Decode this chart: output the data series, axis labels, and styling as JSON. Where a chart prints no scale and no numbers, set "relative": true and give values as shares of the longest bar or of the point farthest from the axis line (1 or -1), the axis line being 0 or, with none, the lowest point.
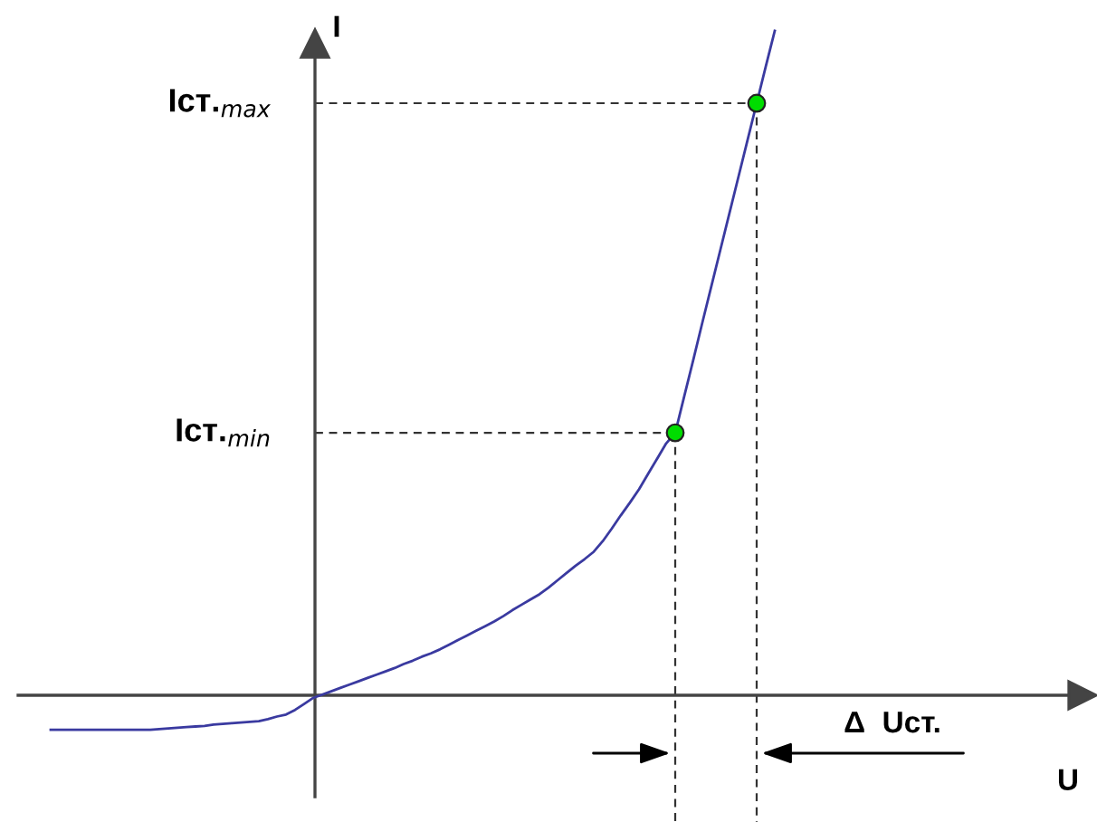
{
  "chart_data": {
    "type": "line",
    "relative": true,
    "ylabel": "I",
    "legend": false,
    "grid": false,
    "categories": [
      null,
      null,
      null,
      null,
      null,
      null,
      null,
      null,
      null,
      null,
      null,
      null,
      null,
      null,
      null,
      null,
      null,
      null,
      null,
      null,
      null,
      null,
      null,
      null,
      null,
      null,
      null,
      null,
      null,
      null,
      null,
      null,
      null,
      null,
      null,
      null,
      null,
      null,
      null,
      null,
      null,
      null,
      null,
      null,
      null,
      null,
      null,
      null,
      null,
      null,
      null,
      null,
      null,
      null,
      null,
      null,
      null,
      null,
      null,
      null,
      null,
      null,
      null,
      null,
      null,
      null,
      null,
      null,
      null,
      null,
      null,
      null,
      null,
      null,
      null,
      null,
      null,
      null,
      null,
      null,
      null
    ],
    "series": [
      {
        "color": "#3a3aa0",
        "values": [
          -0.052,
          -0.052,
          -0.052,
          -0.052,
          -0.052,
          -0.052,
          -0.052,
          -0.052,
          -0.052,
          -0.052,
          -0.052,
          -0.052,
          -0.051,
          -0.05,
          -0.049,
          -0.048,
          -0.047,
          -0.046,
          -0.044,
          -0.043,
          -0.042,
          -0.041,
          -0.04,
          -0.039,
          -0.036,
          -0.032,
          -0.029,
          -0.022,
          -0.013,
          -0.004,
          0.001,
          0.006,
          0.011,
          0.016,
          0.021,
          0.026,
          0.031,
          0.036,
          0.041,
          0.047,
          0.052,
          0.058,
          0.063,
          0.069,
          0.076,
          0.083,
          0.09,
          0.097,
          0.104,
          0.111,
          0.119,
          0.128,
          0.136,
          0.144,
          0.152,
          0.162,
          0.173,
          0.184,
          0.195,
          0.205,
          0.216,
          0.232,
          0.251,
          0.271,
          0.29,
          0.31,
          0.333,
          0.356,
          0.379,
          0.395,
          0.45,
          0.505,
          0.561,
          0.616,
          0.671,
          0.726,
          0.781,
          0.836,
          0.891,
          0.946,
          1
        ]
      }
    ],
    "ref_lines": [
      {
        "axis": "y",
        "value": 0.395,
        "label": "Iст.$_{min}$",
        "line_style": "dashed",
        "color": "#333333"
      },
      {
        "axis": "y",
        "value": 0.891,
        "label": "Iст.$_{max}$",
        "line_style": "dashed",
        "color": "#333333"
      }
    ],
    "annotations": [
      "Δ  Uст.",
      "U"
    ]
  }
}
